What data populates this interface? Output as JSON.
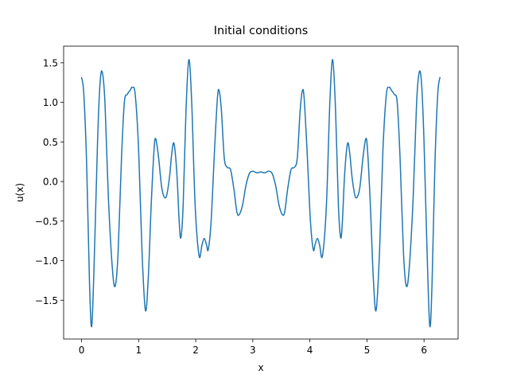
{
  "chart_data": {
    "type": "line",
    "title": "Initial conditions",
    "x_label": "x",
    "y_label": "u(x)",
    "xlim": [
      -0.314,
      6.597
    ],
    "ylim": [
      -1.99,
      1.71
    ],
    "xticks": [
      0,
      1,
      2,
      3,
      4,
      5,
      6
    ],
    "yticks": [
      {
        "value": -1.5,
        "label": "−1.5"
      },
      {
        "value": -1.0,
        "label": "−1.0"
      },
      {
        "value": -0.5,
        "label": "−0.5"
      },
      {
        "value": 0,
        "label": "0.0"
      },
      {
        "value": 0.5,
        "label": "0.5"
      },
      {
        "value": 1.0,
        "label": "1.0"
      },
      {
        "value": 1.5,
        "label": "1.5"
      }
    ],
    "grid": false,
    "series": [
      {
        "color": "#1f77b4",
        "x": [
          0,
          0.04,
          0.09,
          0.14,
          0.18,
          0.23,
          0.28,
          0.32,
          0.36,
          0.41,
          0.47,
          0.54,
          0.59,
          0.64,
          0.7,
          0.75,
          0.8,
          0.85,
          0.89,
          0.94,
          1.0,
          1.06,
          1.12,
          1.17,
          1.22,
          1.27,
          1.3,
          1.35,
          1.41,
          1.48,
          1.54,
          1.58,
          1.62,
          1.67,
          1.71,
          1.74,
          1.78,
          1.83,
          1.88,
          1.93,
          1.99,
          2.06,
          2.11,
          2.15,
          2.19,
          2.22,
          2.27,
          2.33,
          2.38,
          2.41,
          2.45,
          2.5,
          2.55,
          2.61,
          2.67,
          2.72,
          2.76,
          2.82,
          2.88,
          2.94,
          3.0,
          3.07,
          3.14,
          3.21,
          3.28,
          3.34,
          3.4,
          3.46,
          3.52,
          3.56,
          3.61,
          3.67,
          3.73,
          3.78,
          3.83,
          3.87,
          3.9,
          3.95,
          4.01,
          4.06,
          4.09,
          4.13,
          4.17,
          4.22,
          4.29,
          4.35,
          4.4,
          4.45,
          4.5,
          4.54,
          4.57,
          4.61,
          4.66,
          4.7,
          4.74,
          4.8,
          4.87,
          4.93,
          4.98,
          5.01,
          5.06,
          5.11,
          5.16,
          5.22,
          5.28,
          5.34,
          5.39,
          5.43,
          5.48,
          5.53,
          5.58,
          5.64,
          5.69,
          5.74,
          5.81,
          5.87,
          5.92,
          5.96,
          6.0,
          6.05,
          6.1,
          6.14,
          6.19,
          6.24,
          6.28
        ],
        "values": [
          1.32,
          1.1,
          0.2,
          -1.3,
          -1.82,
          -0.8,
          0.5,
          1.2,
          1.39,
          1.0,
          -0.2,
          -1.1,
          -1.32,
          -0.9,
          0.3,
          1.0,
          1.1,
          1.15,
          1.19,
          1.1,
          0.4,
          -0.9,
          -1.63,
          -1.2,
          -0.3,
          0.4,
          0.54,
          0.3,
          -0.1,
          -0.2,
          0.05,
          0.35,
          0.48,
          0.1,
          -0.5,
          -0.71,
          -0.3,
          0.9,
          1.54,
          1.0,
          -0.3,
          -0.94,
          -0.8,
          -0.72,
          -0.8,
          -0.86,
          -0.5,
          0.4,
          1.05,
          1.15,
          0.9,
          0.3,
          0.18,
          0.15,
          -0.1,
          -0.38,
          -0.42,
          -0.3,
          -0.05,
          0.1,
          0.13,
          0.11,
          0.12,
          0.11,
          0.13,
          0.1,
          -0.05,
          -0.3,
          -0.42,
          -0.38,
          -0.1,
          0.15,
          0.18,
          0.3,
          0.9,
          1.15,
          1.05,
          0.4,
          -0.5,
          -0.86,
          -0.8,
          -0.72,
          -0.8,
          -0.94,
          -0.3,
          1.0,
          1.54,
          0.9,
          -0.3,
          -0.71,
          -0.5,
          0.1,
          0.48,
          0.35,
          0.05,
          -0.2,
          -0.1,
          0.3,
          0.54,
          0.4,
          -0.3,
          -1.2,
          -1.63,
          -0.9,
          0.4,
          1.1,
          1.19,
          1.15,
          1.1,
          1.0,
          0.3,
          -0.9,
          -1.32,
          -1.1,
          -0.2,
          1.0,
          1.39,
          1.2,
          0.5,
          -0.8,
          -1.82,
          -1.3,
          0.2,
          1.1,
          1.32
        ]
      }
    ]
  }
}
